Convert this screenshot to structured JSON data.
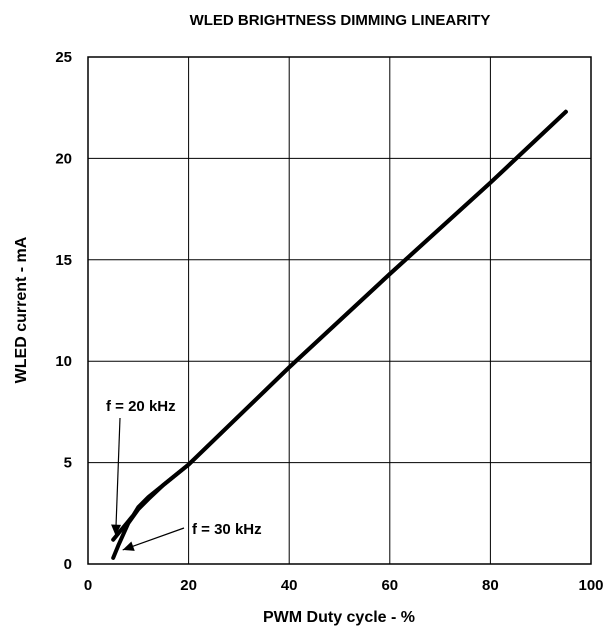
{
  "chart_data": {
    "type": "line",
    "title": "WLED BRIGHTNESS DIMMING LINEARITY",
    "xlabel": "PWM Duty cycle - %",
    "ylabel": "WLED current - mA",
    "xlim": [
      0,
      100
    ],
    "ylim": [
      0,
      25
    ],
    "xticks": [
      "0",
      "20",
      "40",
      "60",
      "80",
      "100"
    ],
    "yticks": [
      "0",
      "5",
      "10",
      "15",
      "20",
      "25"
    ],
    "grid": true,
    "legend": "none",
    "line_color": "#000000",
    "series": [
      {
        "x": [
          5,
          7,
          9,
          10,
          12,
          15,
          20,
          40,
          60,
          80,
          95
        ],
        "y": [
          1.2,
          1.8,
          2.4,
          2.8,
          3.3,
          3.9,
          4.9,
          9.7,
          14.3,
          18.8,
          22.3
        ]
      },
      {
        "x": [
          5,
          6,
          8,
          10,
          12,
          15,
          20,
          40,
          60,
          80,
          95
        ],
        "y": [
          0.3,
          0.9,
          2.0,
          2.7,
          3.2,
          3.9,
          4.9,
          9.7,
          14.3,
          18.8,
          22.3
        ]
      }
    ],
    "annotations": [
      {
        "text": "f = 20 kHz",
        "x": 5.5,
        "y": 1.3
      },
      {
        "text": "f = 30 kHz",
        "x": 6.5,
        "y": 0.3
      }
    ]
  }
}
